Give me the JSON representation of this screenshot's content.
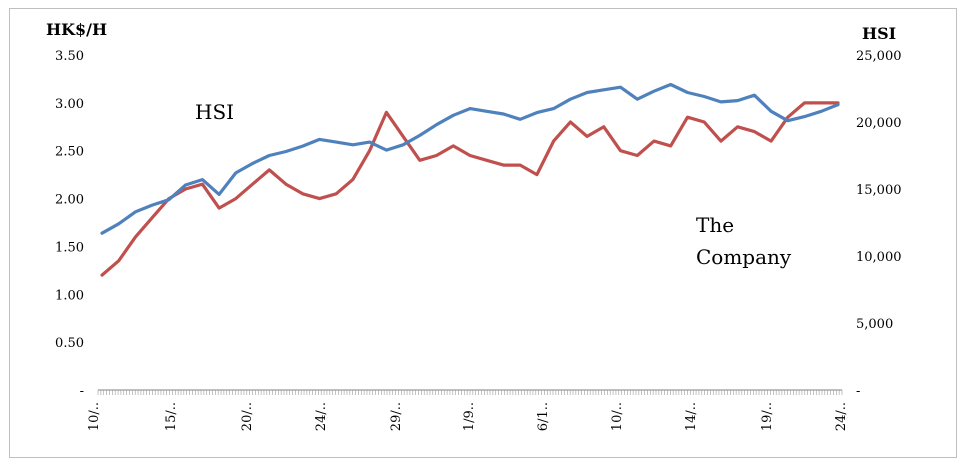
{
  "chart_data": {
    "type": "line",
    "left_axis": {
      "title": "HK$/H",
      "ticks": [
        "3.50",
        "3.00",
        "2.50",
        "2.00",
        "1.50",
        "1.00",
        "0.50",
        "-"
      ],
      "range": [
        0,
        3.5
      ]
    },
    "right_axis": {
      "title": "HSI",
      "ticks": [
        "25,000",
        "20,000",
        "15,000",
        "10,000",
        "5,000",
        "-"
      ],
      "range": [
        0,
        25000
      ]
    },
    "x_tick_labels": [
      "10/..",
      "15/..",
      "20/..",
      "24/..",
      "29/..",
      "1/9..",
      "6/1..",
      "10/..",
      "14/..",
      "19/..",
      "24/.."
    ],
    "annotations": [
      {
        "id": "hsi",
        "text": "HSI"
      },
      {
        "id": "company-1",
        "text": "The"
      },
      {
        "id": "company-2",
        "text": "Company"
      }
    ],
    "series": [
      {
        "name": "HSI",
        "axis": "right",
        "color": "#4f81bd",
        "values": [
          11700,
          12400,
          13300,
          13800,
          14200,
          15300,
          15700,
          14600,
          16200,
          16900,
          17500,
          17800,
          18200,
          18700,
          18500,
          18300,
          18500,
          17900,
          18300,
          19000,
          19800,
          20500,
          21000,
          20800,
          20600,
          20200,
          20700,
          21000,
          21700,
          22200,
          22400,
          22600,
          21700,
          22300,
          22800,
          22200,
          21900,
          21500,
          21600,
          22000,
          20800,
          20100,
          20400,
          20800,
          21300
        ]
      },
      {
        "name": "The Company",
        "axis": "left",
        "color": "#c0504d",
        "values": [
          1.2,
          1.35,
          1.6,
          1.8,
          2.0,
          2.1,
          2.15,
          1.9,
          2.0,
          2.15,
          2.3,
          2.15,
          2.05,
          2.0,
          2.05,
          2.2,
          2.5,
          2.9,
          2.65,
          2.4,
          2.45,
          2.55,
          2.45,
          2.4,
          2.35,
          2.35,
          2.25,
          2.6,
          2.8,
          2.65,
          2.75,
          2.5,
          2.45,
          2.6,
          2.55,
          2.85,
          2.8,
          2.6,
          2.75,
          2.7,
          2.6,
          2.85,
          3.0,
          3.0,
          3.0
        ]
      }
    ]
  }
}
